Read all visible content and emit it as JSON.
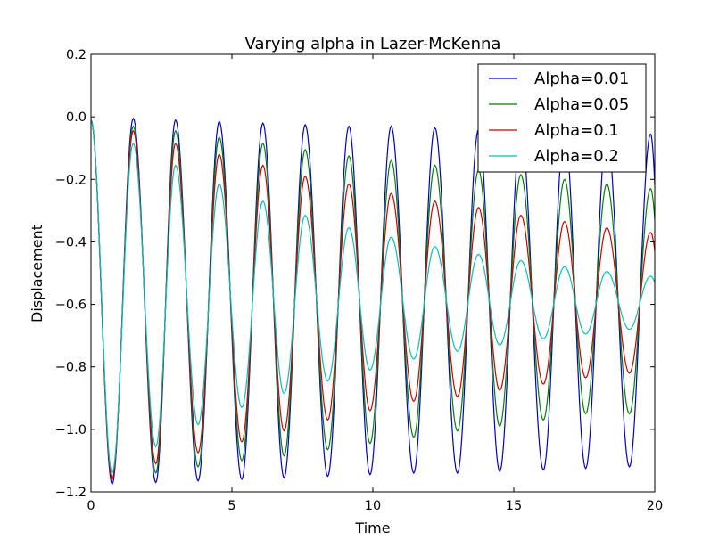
{
  "chart_data": {
    "type": "line",
    "title": "Varying alpha in Lazer-McKenna",
    "xlabel": "Time",
    "ylabel": "Displacement",
    "xlim": [
      0,
      20
    ],
    "ylim": [
      -1.2,
      0.2
    ],
    "xticks": [
      0,
      5,
      10,
      15,
      20
    ],
    "xtick_labels": [
      "0",
      "5",
      "10",
      "15",
      "20"
    ],
    "yticks": [
      -1.2,
      -1.0,
      -0.8,
      -0.6,
      -0.4,
      -0.2,
      0.0,
      0.2
    ],
    "ytick_labels": [
      "−1.2",
      "−1.0",
      "−0.8",
      "−0.6",
      "−0.4",
      "−0.2",
      "0.0",
      "0.2"
    ],
    "grid": false,
    "legend_position": "top-right",
    "series": [
      {
        "name": "Alpha=0.01",
        "color": "#0000cc",
        "first_peak": [
          0,
          -0.01
        ],
        "peaks": [
          [
            1.5,
            -0.005
          ],
          [
            3.0,
            -0.01
          ],
          [
            4.55,
            -0.015
          ],
          [
            6.1,
            -0.02
          ],
          [
            7.6,
            -0.025
          ],
          [
            9.15,
            -0.03
          ],
          [
            10.65,
            -0.03
          ],
          [
            12.2,
            -0.035
          ],
          [
            13.75,
            -0.04
          ],
          [
            15.25,
            -0.04
          ],
          [
            16.8,
            -0.045
          ],
          [
            18.3,
            -0.05
          ],
          [
            19.85,
            -0.055
          ]
        ],
        "troughs": [
          [
            0.75,
            -1.175
          ],
          [
            2.3,
            -1.17
          ],
          [
            3.8,
            -1.165
          ],
          [
            5.35,
            -1.16
          ],
          [
            6.85,
            -1.155
          ],
          [
            8.4,
            -1.15
          ],
          [
            9.9,
            -1.145
          ],
          [
            11.45,
            -1.14
          ],
          [
            13.0,
            -1.14
          ],
          [
            14.5,
            -1.135
          ],
          [
            16.05,
            -1.13
          ],
          [
            17.55,
            -1.125
          ],
          [
            19.1,
            -1.12
          ]
        ],
        "end": [
          20,
          -0.22
        ]
      },
      {
        "name": "Alpha=0.05",
        "color": "#008000",
        "first_peak": [
          0,
          -0.01
        ],
        "peaks": [
          [
            1.5,
            -0.03
          ],
          [
            3.0,
            -0.045
          ],
          [
            4.55,
            -0.065
          ],
          [
            6.1,
            -0.085
          ],
          [
            7.6,
            -0.105
          ],
          [
            9.15,
            -0.125
          ],
          [
            10.65,
            -0.14
          ],
          [
            12.2,
            -0.155
          ],
          [
            13.75,
            -0.17
          ],
          [
            15.25,
            -0.185
          ],
          [
            16.8,
            -0.2
          ],
          [
            18.3,
            -0.215
          ],
          [
            19.85,
            -0.23
          ]
        ],
        "troughs": [
          [
            0.75,
            -1.16
          ],
          [
            2.3,
            -1.14
          ],
          [
            3.8,
            -1.12
          ],
          [
            5.35,
            -1.1
          ],
          [
            6.85,
            -1.085
          ],
          [
            8.4,
            -1.065
          ],
          [
            9.9,
            -1.045
          ],
          [
            11.45,
            -1.025
          ],
          [
            13.0,
            -1.005
          ],
          [
            14.5,
            -0.99
          ],
          [
            16.05,
            -0.97
          ],
          [
            17.55,
            -0.95
          ],
          [
            19.1,
            -0.95
          ]
        ],
        "end": [
          20,
          -0.33
        ]
      },
      {
        "name": "Alpha=0.1",
        "color": "#cc0000",
        "first_peak": [
          0,
          -0.01
        ],
        "peaks": [
          [
            1.5,
            -0.045
          ],
          [
            3.0,
            -0.085
          ],
          [
            4.55,
            -0.12
          ],
          [
            6.1,
            -0.155
          ],
          [
            7.6,
            -0.19
          ],
          [
            9.15,
            -0.215
          ],
          [
            10.65,
            -0.245
          ],
          [
            12.2,
            -0.27
          ],
          [
            13.75,
            -0.29
          ],
          [
            15.25,
            -0.315
          ],
          [
            16.8,
            -0.335
          ],
          [
            18.3,
            -0.355
          ],
          [
            19.85,
            -0.37
          ]
        ],
        "troughs": [
          [
            0.75,
            -1.16
          ],
          [
            2.3,
            -1.11
          ],
          [
            3.8,
            -1.075
          ],
          [
            5.35,
            -1.04
          ],
          [
            6.85,
            -1.005
          ],
          [
            8.4,
            -0.97
          ],
          [
            9.9,
            -0.94
          ],
          [
            11.45,
            -0.91
          ],
          [
            13.0,
            -0.895
          ],
          [
            14.5,
            -0.875
          ],
          [
            16.05,
            -0.855
          ],
          [
            17.55,
            -0.835
          ],
          [
            19.1,
            -0.82
          ]
        ],
        "end": [
          20,
          -0.43
        ]
      },
      {
        "name": "Alpha=0.2",
        "color": "#00bfbf",
        "first_peak": [
          0,
          -0.01
        ],
        "peaks": [
          [
            1.5,
            -0.085
          ],
          [
            3.0,
            -0.155
          ],
          [
            4.55,
            -0.215
          ],
          [
            6.1,
            -0.27
          ],
          [
            7.6,
            -0.315
          ],
          [
            9.15,
            -0.355
          ],
          [
            10.65,
            -0.385
          ],
          [
            12.2,
            -0.415
          ],
          [
            13.75,
            -0.44
          ],
          [
            15.25,
            -0.46
          ],
          [
            16.8,
            -0.48
          ],
          [
            18.3,
            -0.495
          ],
          [
            19.85,
            -0.51
          ]
        ],
        "troughs": [
          [
            0.75,
            -1.14
          ],
          [
            2.3,
            -1.055
          ],
          [
            3.8,
            -0.985
          ],
          [
            5.35,
            -0.93
          ],
          [
            6.85,
            -0.885
          ],
          [
            8.4,
            -0.845
          ],
          [
            9.9,
            -0.81
          ],
          [
            11.45,
            -0.775
          ],
          [
            13.0,
            -0.75
          ],
          [
            14.5,
            -0.73
          ],
          [
            16.05,
            -0.71
          ],
          [
            17.55,
            -0.695
          ],
          [
            19.1,
            -0.68
          ]
        ],
        "end": [
          20,
          -0.53
        ]
      }
    ]
  }
}
